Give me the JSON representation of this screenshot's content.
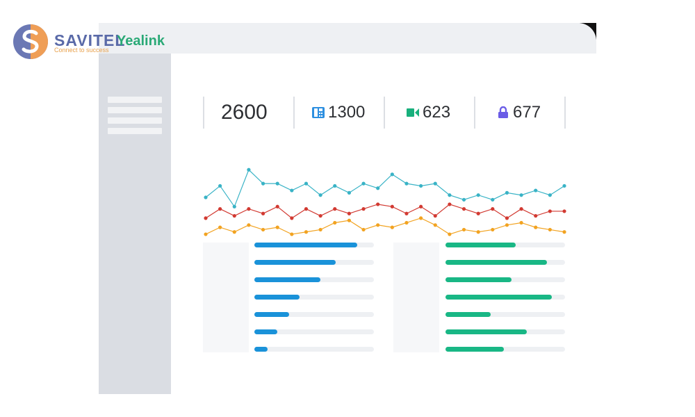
{
  "logo": {
    "text": "SAVITEL",
    "tagline": "Connect to success",
    "brand_word": "Yealink",
    "colors": {
      "blue": "#5a6aa8",
      "orange": "#e8a04b",
      "green": "#2aa976"
    }
  },
  "sidebar": {
    "menu_items": 4
  },
  "stats": {
    "total": "2600",
    "items": [
      {
        "icon": "phone-icon",
        "value": "1300",
        "color": "#2d8fe0"
      },
      {
        "icon": "video-camera-icon",
        "value": "623",
        "color": "#18b07c"
      },
      {
        "icon": "lock-icon",
        "value": "677",
        "color": "#6a5ce6"
      }
    ]
  },
  "chart_data": {
    "type": "line",
    "grid": false,
    "series": [
      {
        "color": "#39b3c6",
        "values": [
          38,
          48,
          30,
          62,
          50,
          50,
          44,
          50,
          40,
          48,
          42,
          50,
          46,
          58,
          50,
          48,
          50,
          40,
          36,
          40,
          36,
          42,
          40,
          44,
          40,
          48
        ]
      },
      {
        "color": "#d23a32",
        "values": [
          20,
          28,
          22,
          28,
          24,
          30,
          20,
          28,
          22,
          28,
          24,
          28,
          32,
          30,
          24,
          30,
          22,
          32,
          28,
          24,
          28,
          20,
          28,
          22,
          26,
          26
        ]
      },
      {
        "color": "#f2a321",
        "values": [
          6,
          12,
          8,
          14,
          10,
          12,
          6,
          8,
          10,
          16,
          18,
          10,
          14,
          12,
          16,
          20,
          14,
          6,
          10,
          8,
          10,
          14,
          16,
          12,
          10,
          8
        ]
      }
    ],
    "ylim": [
      0,
      70
    ]
  },
  "bars_left": {
    "color": "#1a92d9",
    "values": [
      0.86,
      0.68,
      0.55,
      0.38,
      0.29,
      0.19,
      0.11
    ]
  },
  "bars_right": {
    "color": "#19b785",
    "values": [
      0.59,
      0.85,
      0.55,
      0.89,
      0.38,
      0.68,
      0.49
    ]
  }
}
